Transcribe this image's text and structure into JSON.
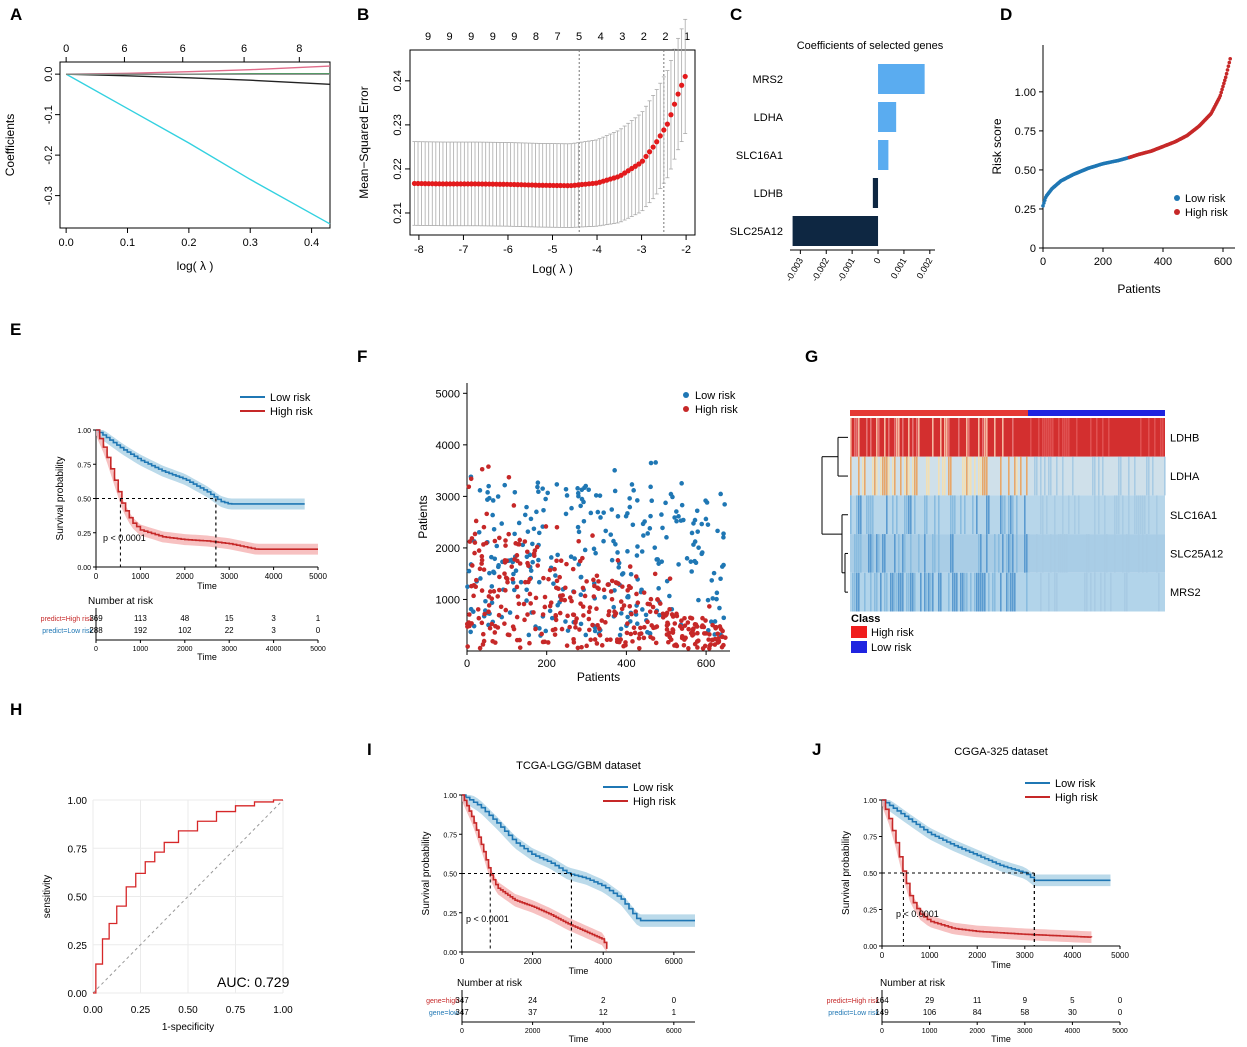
{
  "panel_letters": [
    "A",
    "B",
    "C",
    "D",
    "E",
    "F",
    "G",
    "H",
    "I",
    "J"
  ],
  "colors": {
    "low": "#1f77b4",
    "high": "#c62828",
    "lowBand": "#9ecae1",
    "highBand": "#f4a6a6",
    "heatRed": "#d32f2f",
    "heatBlue": "#1f24e0"
  },
  "chart_data": [
    {
      "panel": "A",
      "type": "line",
      "xlabel": "log( λ )",
      "ylabel": "Coefficients",
      "top_labels": [
        "0",
        "6",
        "6",
        "6",
        "8"
      ],
      "x_ticks": [
        "0.0",
        "0.1",
        "0.2",
        "0.3",
        "0.4"
      ],
      "y_ticks": [
        "0.0",
        "-0.1",
        "-0.2",
        "-0.3"
      ],
      "xlim": [
        -0.01,
        0.43
      ],
      "ylim": [
        -0.38,
        0.03
      ],
      "series": [
        {
          "name": "cyan",
          "color": "#33d1e0",
          "x": [
            0.0,
            0.1,
            0.2,
            0.3,
            0.43
          ],
          "y": [
            0.0,
            -0.085,
            -0.17,
            -0.26,
            -0.37
          ]
        },
        {
          "name": "black",
          "color": "#222222",
          "x": [
            0.0,
            0.1,
            0.2,
            0.3,
            0.43
          ],
          "y": [
            0.0,
            -0.004,
            -0.009,
            -0.015,
            -0.025
          ]
        },
        {
          "name": "red",
          "color": "#e06c8a",
          "x": [
            0.0,
            0.1,
            0.2,
            0.3,
            0.43
          ],
          "y": [
            0.0,
            0.002,
            0.006,
            0.011,
            0.02
          ]
        },
        {
          "name": "green",
          "color": "#22aa44",
          "x": [
            0.0,
            0.1,
            0.2,
            0.3,
            0.43
          ],
          "y": [
            0.0,
            0.0,
            0.0,
            0.001,
            0.001
          ]
        },
        {
          "name": "gray",
          "color": "#888888",
          "x": [
            0.0,
            0.1,
            0.2,
            0.3,
            0.43
          ],
          "y": [
            0.0,
            0.0,
            0.0,
            0.0,
            0.0
          ]
        }
      ]
    },
    {
      "panel": "B",
      "type": "scatter",
      "xlabel": "Log( λ )",
      "ylabel": "Mean−Squared Error",
      "top_labels": [
        "9",
        "9",
        "9",
        "9",
        "9",
        "8",
        "7",
        "5",
        "4",
        "3",
        "2",
        "2",
        "1"
      ],
      "x_ticks": [
        "-8",
        "-7",
        "-6",
        "-5",
        "-4",
        "-3",
        "-2"
      ],
      "y_ticks": [
        "0.21",
        "0.22",
        "0.23",
        "0.24"
      ],
      "xlim": [
        -8.2,
        -1.8
      ],
      "ylim": [
        0.205,
        0.247
      ],
      "vlines": [
        -4.4,
        -2.5
      ],
      "x": [
        -8.1,
        -7.4,
        -6.7,
        -6.0,
        -5.3,
        -4.6,
        -4.0,
        -3.5,
        -3.0,
        -2.7,
        -2.4,
        -2.2,
        -2.0
      ],
      "y": [
        0.2167,
        0.2166,
        0.2166,
        0.2165,
        0.2163,
        0.2162,
        0.2168,
        0.2183,
        0.2215,
        0.2255,
        0.2305,
        0.2365,
        0.2415
      ],
      "err": [
        0.0095,
        0.0095,
        0.0095,
        0.0095,
        0.0095,
        0.0095,
        0.0098,
        0.0105,
        0.0112,
        0.0118,
        0.0122,
        0.0126,
        0.013
      ]
    },
    {
      "panel": "C",
      "type": "bar",
      "title": "Coefficients of selected genes",
      "categories": [
        "MRS2",
        "LDHA",
        "SLC16A1",
        "LDHB",
        "SLC25A12"
      ],
      "values": [
        0.0018,
        0.0007,
        0.0004,
        -0.0002,
        -0.0033
      ],
      "x_ticks": [
        "-0.003",
        "-0.002",
        "-0.001",
        "0",
        "0.001",
        "0.002"
      ],
      "xlim": [
        -0.0034,
        0.0022
      ]
    },
    {
      "panel": "D",
      "type": "scatter",
      "xlabel": "Patients",
      "ylabel": "Risk score",
      "x_ticks": [
        "0",
        "200",
        "400",
        "600"
      ],
      "y_ticks": [
        "0",
        "0.25",
        "0.50",
        "0.75",
        "1.00"
      ],
      "xlim": [
        0,
        640
      ],
      "ylim": [
        0,
        1.3
      ],
      "legend": [
        "Low risk",
        "High risk"
      ],
      "split_index": 288,
      "x": [
        0,
        10,
        30,
        60,
        100,
        150,
        200,
        250,
        288,
        320,
        360,
        400,
        440,
        480,
        520,
        560,
        590,
        610,
        625
      ],
      "y": [
        0.27,
        0.33,
        0.38,
        0.43,
        0.47,
        0.51,
        0.54,
        0.56,
        0.58,
        0.6,
        0.62,
        0.65,
        0.68,
        0.72,
        0.78,
        0.86,
        0.97,
        1.1,
        1.22
      ]
    },
    {
      "panel": "E",
      "type": "line",
      "xlabel": "Time",
      "ylabel": "Survival probability",
      "x_ticks": [
        "0",
        "1000",
        "2000",
        "3000",
        "4000",
        "5000"
      ],
      "y_ticks": [
        "0.00",
        "0.25",
        "0.50",
        "0.75",
        "1.00"
      ],
      "xlim": [
        0,
        5000
      ],
      "ylim": [
        0,
        1
      ],
      "pvalue": "p < 0.0001",
      "legend": [
        "Low risk",
        "High risk"
      ],
      "series": [
        {
          "name": "Low risk",
          "x": [
            0,
            300,
            600,
            1000,
            1500,
            2000,
            2500,
            2800,
            3000,
            4000,
            4700
          ],
          "y": [
            1.0,
            0.93,
            0.86,
            0.78,
            0.7,
            0.64,
            0.55,
            0.48,
            0.46,
            0.46,
            0.46
          ]
        },
        {
          "name": "High risk",
          "x": [
            0,
            200,
            400,
            600,
            800,
            1000,
            1500,
            2000,
            2500,
            3000,
            3600,
            4000,
            5000
          ],
          "y": [
            1.0,
            0.85,
            0.65,
            0.45,
            0.33,
            0.27,
            0.22,
            0.2,
            0.19,
            0.17,
            0.13,
            0.13,
            0.13
          ]
        }
      ],
      "risk_table": {
        "title": "Number at risk",
        "rows": [
          {
            "label": "predict=High risk",
            "values": [
              "369",
              "113",
              "48",
              "15",
              "3",
              "1"
            ]
          },
          {
            "label": "predict=Low risk",
            "values": [
              "288",
              "192",
              "102",
              "22",
              "3",
              "0"
            ]
          }
        ]
      }
    },
    {
      "panel": "F",
      "type": "scatter",
      "xlabel": "Patients",
      "ylabel": "Patients",
      "x_ticks": [
        "0",
        "200",
        "400",
        "600"
      ],
      "y_ticks": [
        "1000",
        "2000",
        "3000",
        "4000",
        "5000"
      ],
      "xlim": [
        0,
        660
      ],
      "ylim": [
        0,
        5200
      ],
      "legend": [
        "Low risk",
        "High risk"
      ]
    },
    {
      "panel": "G",
      "type": "heatmap",
      "rows": [
        "LDHB",
        "LDHA",
        "SLC16A1",
        "SLC25A12",
        "MRS2"
      ],
      "legend_title": "Class",
      "legend": [
        "High risk",
        "Low risk"
      ]
    },
    {
      "panel": "H",
      "type": "line",
      "xlabel": "1-specificity",
      "ylabel": "sensitivity",
      "auc": "AUC: 0.729",
      "x_ticks": [
        "0.00",
        "0.25",
        "0.50",
        "0.75",
        "1.00"
      ],
      "y_ticks": [
        "0.00",
        "0.25",
        "0.50",
        "0.75",
        "1.00"
      ],
      "x": [
        0,
        0.03,
        0.07,
        0.1,
        0.15,
        0.2,
        0.25,
        0.3,
        0.35,
        0.4,
        0.5,
        0.6,
        0.7,
        0.8,
        0.9,
        1.0
      ],
      "y": [
        0,
        0.15,
        0.28,
        0.36,
        0.45,
        0.55,
        0.62,
        0.68,
        0.73,
        0.78,
        0.84,
        0.89,
        0.94,
        0.97,
        0.99,
        1.0
      ]
    },
    {
      "panel": "I",
      "type": "line",
      "title": "TCGA-LGG/GBM dataset",
      "xlabel": "Time",
      "ylabel": "Survival probability",
      "x_ticks": [
        "0",
        "2000",
        "4000",
        "6000"
      ],
      "y_ticks": [
        "0.00",
        "0.25",
        "0.50",
        "0.75",
        "1.00"
      ],
      "xlim": [
        0,
        6600
      ],
      "ylim": [
        0,
        1
      ],
      "pvalue": "p < 0.0001",
      "legend": [
        "Low risk",
        "High risk"
      ],
      "series": [
        {
          "name": "Low risk",
          "x": [
            0,
            500,
            1000,
            1500,
            2000,
            2500,
            3000,
            3500,
            4000,
            4500,
            5000,
            6600
          ],
          "y": [
            1.0,
            0.93,
            0.82,
            0.7,
            0.62,
            0.57,
            0.5,
            0.47,
            0.42,
            0.34,
            0.2,
            0.2
          ]
        },
        {
          "name": "High risk",
          "x": [
            0,
            300,
            600,
            800,
            1000,
            1500,
            2000,
            2500,
            3000,
            3500,
            4000,
            4100
          ],
          "y": [
            1.0,
            0.85,
            0.65,
            0.5,
            0.41,
            0.33,
            0.29,
            0.24,
            0.18,
            0.13,
            0.08,
            0.02
          ]
        }
      ],
      "risk_table": {
        "title": "Number at risk",
        "rows": [
          {
            "label": "gene=high",
            "values": [
              "347",
              "24",
              "2",
              "0"
            ]
          },
          {
            "label": "gene=low",
            "values": [
              "347",
              "37",
              "12",
              "1"
            ]
          }
        ]
      }
    },
    {
      "panel": "J",
      "type": "line",
      "title": "CGGA-325 dataset",
      "xlabel": "Time",
      "ylabel": "Survival probability",
      "x_ticks": [
        "0",
        "1000",
        "2000",
        "3000",
        "4000",
        "5000"
      ],
      "y_ticks": [
        "0.00",
        "0.25",
        "0.50",
        "0.75",
        "1.00"
      ],
      "xlim": [
        0,
        5000
      ],
      "ylim": [
        0,
        1
      ],
      "pvalue": "p < 0.0001",
      "legend": [
        "Low risk",
        "High risk"
      ],
      "series": [
        {
          "name": "Low risk",
          "x": [
            0,
            300,
            600,
            1000,
            1500,
            2000,
            2500,
            3000,
            3200,
            4000,
            4800
          ],
          "y": [
            1.0,
            0.93,
            0.86,
            0.77,
            0.69,
            0.62,
            0.55,
            0.5,
            0.45,
            0.45,
            0.45
          ]
        },
        {
          "name": "High risk",
          "x": [
            0,
            150,
            300,
            450,
            600,
            800,
            1000,
            1500,
            2000,
            2500,
            3000,
            4400
          ],
          "y": [
            1.0,
            0.87,
            0.7,
            0.5,
            0.33,
            0.22,
            0.17,
            0.12,
            0.1,
            0.09,
            0.08,
            0.06
          ]
        }
      ],
      "risk_table": {
        "title": "Number at risk",
        "rows": [
          {
            "label": "predict=High risk",
            "values": [
              "164",
              "29",
              "11",
              "9",
              "5",
              "0"
            ]
          },
          {
            "label": "predict=Low risk",
            "values": [
              "149",
              "106",
              "84",
              "58",
              "30",
              "0"
            ]
          }
        ]
      }
    }
  ]
}
